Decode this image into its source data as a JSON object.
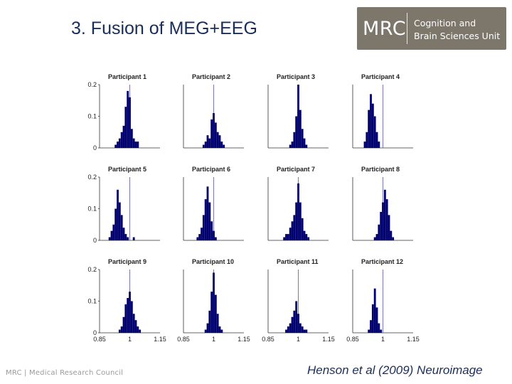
{
  "slide": {
    "title": "3. Fusion of MEG+EEG",
    "citation": "Henson et al (2009) Neuroimage",
    "footer_org": "MRC | Medical Research Council"
  },
  "logo": {
    "short": "MRC",
    "unit_line1": "Cognition and",
    "unit_line2": "Brain Sciences Unit",
    "background": "#7d766b"
  },
  "colors": {
    "bars": "#00006e",
    "reference_line": "#6a6aaa",
    "title": "#1a2e5a"
  },
  "chart_data": {
    "type": "bar",
    "layout": "4x3 small multiples",
    "yticks": [
      0,
      0.1,
      0.2
    ],
    "ylim": [
      0,
      0.2
    ],
    "xlim": [
      0.85,
      1.15
    ],
    "xtick_labels": [
      "0.85",
      "1",
      "1.15"
    ],
    "reference_line_x": 1,
    "bins_x": [
      0.9,
      0.91,
      0.92,
      0.93,
      0.94,
      0.95,
      0.96,
      0.97,
      0.98,
      0.99,
      1.0,
      1.01,
      1.02,
      1.03,
      1.04,
      1.05,
      1.06
    ],
    "panels": [
      {
        "title": "Participant 1",
        "values": [
          0,
          0,
          0,
          0.01,
          0.02,
          0.03,
          0.05,
          0.07,
          0.13,
          0.18,
          0.16,
          0.06,
          0.03,
          0.02,
          0.02,
          0,
          0
        ]
      },
      {
        "title": "Participant 2",
        "values": [
          0,
          0,
          0,
          0,
          0,
          0.01,
          0.02,
          0.04,
          0.03,
          0.09,
          0.11,
          0.08,
          0.05,
          0.04,
          0.02,
          0.01,
          0
        ]
      },
      {
        "title": "Participant 3",
        "values": [
          0,
          0,
          0,
          0,
          0,
          0,
          0.01,
          0.02,
          0.05,
          0.1,
          0.2,
          0.12,
          0.06,
          0.03,
          0.01,
          0,
          0
        ]
      },
      {
        "title": "Participant 4",
        "values": [
          0,
          0.02,
          0.05,
          0.12,
          0.17,
          0.14,
          0.1,
          0.05,
          0.02,
          0,
          0,
          0,
          0,
          0,
          0,
          0,
          0
        ]
      },
      {
        "title": "Participant 5",
        "values": [
          0.01,
          0.03,
          0.05,
          0.1,
          0.16,
          0.12,
          0.08,
          0.04,
          0.02,
          0.01,
          0,
          0,
          0.01,
          0,
          0,
          0,
          0
        ]
      },
      {
        "title": "Participant 6",
        "values": [
          0,
          0,
          0.01,
          0.02,
          0.04,
          0.08,
          0.13,
          0.17,
          0.12,
          0.06,
          0.03,
          0.01,
          0,
          0,
          0,
          0,
          0
        ]
      },
      {
        "title": "Participant 7",
        "values": [
          0,
          0,
          0,
          0.01,
          0.02,
          0.02,
          0.04,
          0.06,
          0.08,
          0.12,
          0.18,
          0.12,
          0.07,
          0.03,
          0.02,
          0.01,
          0
        ]
      },
      {
        "title": "Participant 8",
        "values": [
          0,
          0,
          0,
          0,
          0,
          0,
          0.01,
          0.02,
          0.05,
          0.09,
          0.12,
          0.16,
          0.13,
          0.08,
          0.03,
          0.01,
          0
        ]
      },
      {
        "title": "Participant 9",
        "values": [
          0,
          0,
          0,
          0,
          0,
          0.01,
          0.02,
          0.05,
          0.09,
          0.11,
          0.13,
          0.1,
          0.06,
          0.04,
          0.02,
          0.01,
          0
        ]
      },
      {
        "title": "Participant 10",
        "values": [
          0,
          0,
          0,
          0,
          0,
          0,
          0.01,
          0.03,
          0.07,
          0.13,
          0.19,
          0.12,
          0.06,
          0.02,
          0.01,
          0,
          0
        ]
      },
      {
        "title": "Participant 11",
        "values": [
          0,
          0,
          0,
          0,
          0.01,
          0.02,
          0.03,
          0.05,
          0.07,
          0.1,
          0.06,
          0.03,
          0.02,
          0.01,
          0.01,
          0,
          0
        ]
      },
      {
        "title": "Participant 12",
        "values": [
          0,
          0,
          0,
          0.01,
          0.04,
          0.09,
          0.14,
          0.08,
          0.03,
          0.01,
          0,
          0,
          0,
          0,
          0,
          0,
          0
        ]
      }
    ]
  }
}
